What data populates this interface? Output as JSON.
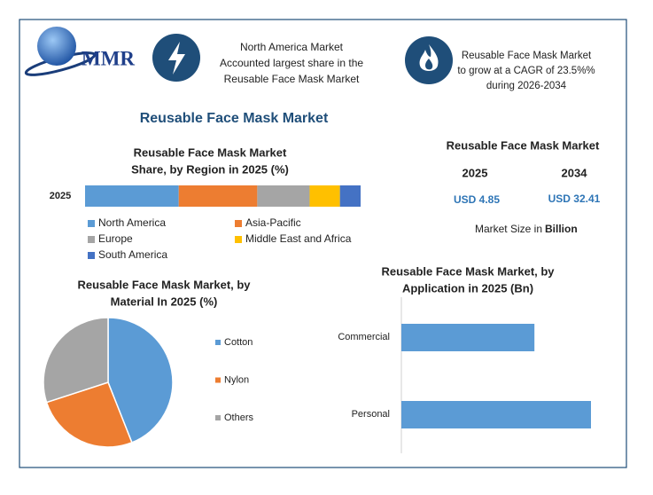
{
  "header": {
    "logo": "MMR",
    "box1": {
      "lines": [
        "North America Market",
        "Accounted largest share in the",
        "Reusable Face Mask Market"
      ]
    },
    "box2": {
      "lines": [
        "Reusable Face Mask Market",
        "to grow at a CAGR of 23.5%%",
        "during 2026-2034"
      ]
    }
  },
  "title": "Reusable Face Mask Market",
  "market_size": {
    "title": "Reusable Face Mask Market",
    "columns": [
      {
        "year": "2025",
        "value": "USD 4.85"
      },
      {
        "year": "2034",
        "value": "USD 32.41"
      }
    ],
    "note": "Market Size in",
    "unit": "Billion"
  },
  "chart_data": [
    {
      "type": "stacked_bar",
      "title": [
        "Reusable Face Mask Market",
        "Share, by Region in 2025 (%)"
      ],
      "categories": [
        "2025"
      ],
      "series": [
        {
          "name": "North America",
          "color": "#5b9bd5",
          "values": [
            34
          ]
        },
        {
          "name": "Asia-Pacific",
          "color": "#ed7d31",
          "values": [
            28.5
          ]
        },
        {
          "name": "Europe",
          "color": "#a5a5a5",
          "values": [
            19
          ]
        },
        {
          "name": "Middle East and Africa",
          "color": "#ffc000",
          "values": [
            11
          ]
        },
        {
          "name": "South America",
          "color": "#4472c4",
          "values": [
            7.5
          ]
        }
      ]
    },
    {
      "type": "pie",
      "title": [
        "Reusable Face Mask Market, by",
        "Material In 2025 (%)"
      ],
      "categories": [
        "Cotton",
        "Nylon",
        "Others"
      ],
      "values": [
        44,
        26,
        30
      ],
      "colors": [
        "#5b9bd5",
        "#ed7d31",
        "#a5a5a5"
      ]
    },
    {
      "type": "bar",
      "title": [
        "Reusable Face Mask Market, by",
        "Application in 2025 (Bn)"
      ],
      "categories": [
        "Commercial",
        "Personal"
      ],
      "values": [
        2.0,
        2.85
      ],
      "color": "#5b9bd5"
    }
  ]
}
